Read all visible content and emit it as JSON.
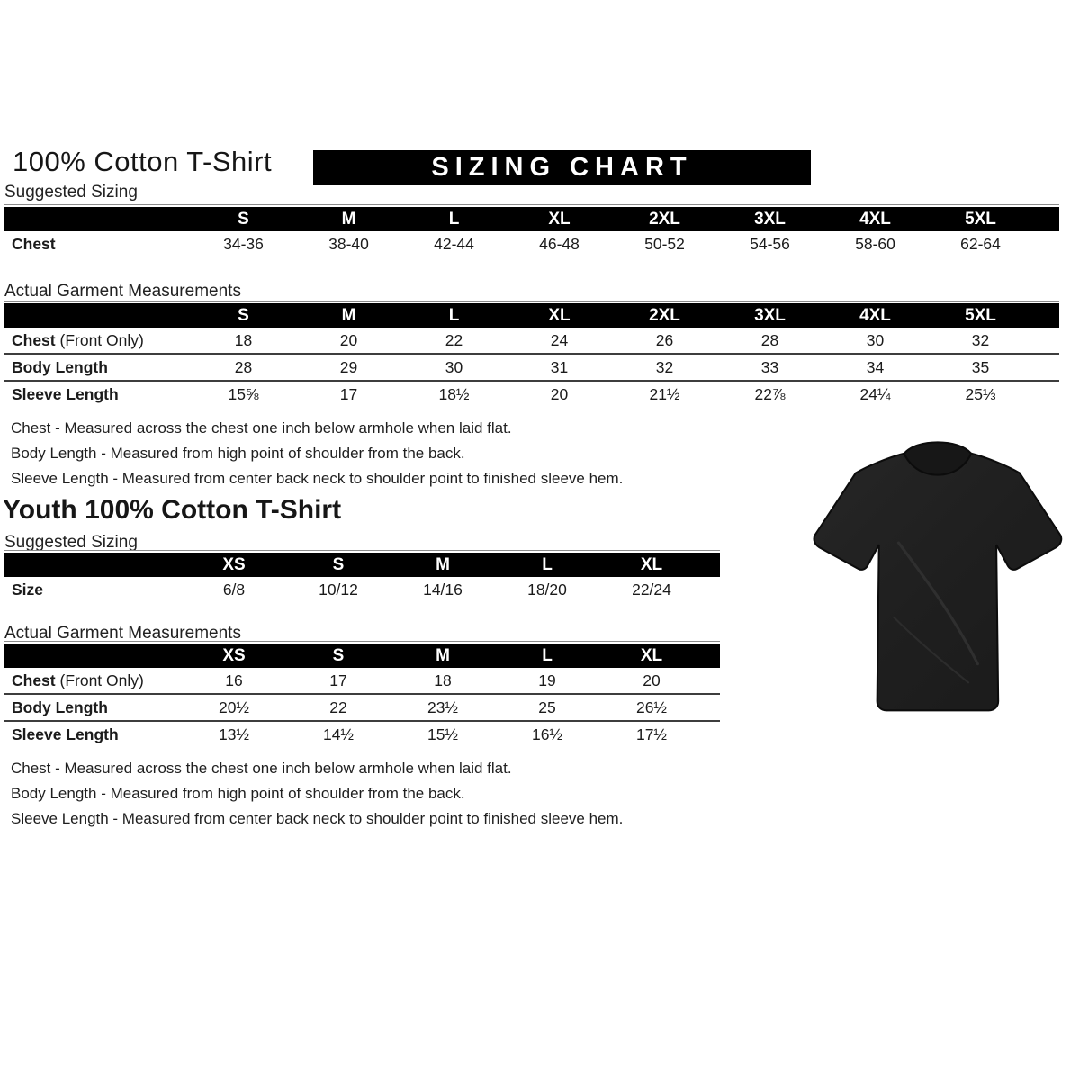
{
  "header": {
    "title": "100% Cotton T-Shirt",
    "banner": "SIZING CHART"
  },
  "adult": {
    "suggested": {
      "label": "Suggested Sizing",
      "columns": [
        "S",
        "M",
        "L",
        "XL",
        "2XL",
        "3XL",
        "4XL",
        "5XL"
      ],
      "rows": [
        {
          "label": "Chest",
          "suffix": "",
          "values": [
            "34-36",
            "38-40",
            "42-44",
            "46-48",
            "50-52",
            "54-56",
            "58-60",
            "62-64"
          ]
        }
      ]
    },
    "measurements": {
      "label": "Actual Garment Measurements",
      "columns": [
        "S",
        "M",
        "L",
        "XL",
        "2XL",
        "3XL",
        "4XL",
        "5XL"
      ],
      "rows": [
        {
          "label": "Chest",
          "suffix": "(Front Only)",
          "values": [
            "18",
            "20",
            "22",
            "24",
            "26",
            "28",
            "30",
            "32"
          ]
        },
        {
          "label": "Body Length",
          "suffix": "",
          "values": [
            "28",
            "29",
            "30",
            "31",
            "32",
            "33",
            "34",
            "35"
          ]
        },
        {
          "label": "Sleeve Length",
          "suffix": "",
          "values": [
            "15⅝",
            "17",
            "18½",
            "20",
            "21½",
            "22⅞",
            "24¼",
            "25⅓"
          ]
        }
      ]
    },
    "notes": [
      "Chest - Measured across the chest one inch below armhole when laid flat.",
      "Body Length - Measured from high point of shoulder from the back.",
      "Sleeve Length - Measured from center back neck to shoulder point to finished sleeve hem."
    ]
  },
  "youth": {
    "title": "Youth 100% Cotton T-Shirt",
    "suggested": {
      "label": "Suggested Sizing",
      "columns": [
        "XS",
        "S",
        "M",
        "L",
        "XL"
      ],
      "rows": [
        {
          "label": "Size",
          "suffix": "",
          "values": [
            "6/8",
            "10/12",
            "14/16",
            "18/20",
            "22/24"
          ]
        }
      ]
    },
    "measurements": {
      "label": "Actual Garment Measurements",
      "columns": [
        "XS",
        "S",
        "M",
        "L",
        "XL"
      ],
      "rows": [
        {
          "label": "Chest",
          "suffix": "(Front Only)",
          "values": [
            "16",
            "17",
            "18",
            "19",
            "20"
          ]
        },
        {
          "label": "Body Length",
          "suffix": "",
          "values": [
            "20½",
            "22",
            "23½",
            "25",
            "26½"
          ]
        },
        {
          "label": "Sleeve Length",
          "suffix": "",
          "values": [
            "13½",
            "14½",
            "15½",
            "16½",
            "17½"
          ]
        }
      ]
    },
    "notes": [
      "Chest - Measured across the chest one inch below armhole when laid flat.",
      "Body Length - Measured from high point of shoulder from the back.",
      "Sleeve Length - Measured from center back neck to shoulder point to finished sleeve hem."
    ]
  },
  "tshirt_image": "black-tshirt-product-photo",
  "colors": {
    "bar": "#000000",
    "bar_text": "#ffffff",
    "text": "#1b1b1b",
    "shirt": "#1f1f1f",
    "shirt_collar": "#171717"
  }
}
